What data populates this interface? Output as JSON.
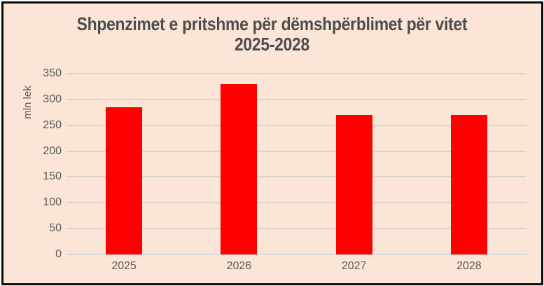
{
  "chart_data": {
    "type": "bar",
    "title": "Shpenzimet e pritshme për dëmshpërblimet për vitet 2025-2028",
    "title_lines": [
      "Shpenzimet e pritshme për dëmshpërblimet për vitet",
      "2025-2028"
    ],
    "categories": [
      "2025",
      "2026",
      "2027",
      "2028"
    ],
    "values": [
      285,
      330,
      270,
      270
    ],
    "xlabel": "",
    "ylabel": "mln lek",
    "ylim": [
      0,
      350
    ],
    "yticks": [
      0,
      50,
      100,
      150,
      200,
      250,
      300,
      350
    ],
    "grid": true,
    "legend": false,
    "colors": {
      "bar": "#fe0000",
      "background": "#fbe5d6",
      "gridline": "#d9d2cd",
      "axis_line": "#d9d9d9",
      "tick_text": "#595959",
      "title_text": "#4d4d4d",
      "frame_border": "#0d0d0d"
    }
  }
}
